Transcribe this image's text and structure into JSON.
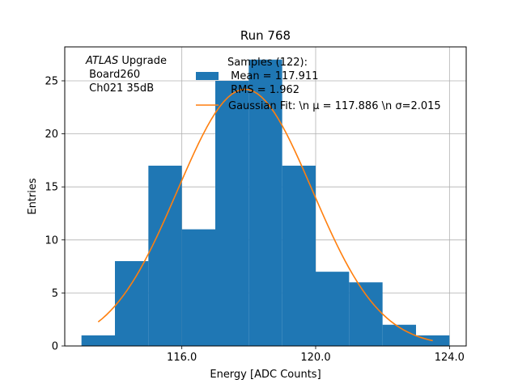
{
  "chart_data": {
    "type": "bar",
    "title": "Run 768",
    "xlabel": "Energy [ADC Counts]",
    "ylabel": "Entries",
    "xlim": [
      112.5,
      124.5
    ],
    "ylim": [
      0,
      28.2
    ],
    "grid": true,
    "x_ticks": [
      116.0,
      120.0,
      124.0
    ],
    "x_tick_labels": [
      "116.0",
      "120.0",
      "124.0"
    ],
    "y_ticks": [
      0,
      5,
      10,
      15,
      20,
      25
    ],
    "y_tick_labels": [
      "0",
      "5",
      "10",
      "15",
      "20",
      "25"
    ],
    "bin_edges": [
      113.0,
      114.0,
      115.0,
      116.0,
      117.0,
      118.0,
      119.0,
      120.0,
      121.0,
      122.0,
      123.0,
      124.0
    ],
    "values": [
      1,
      8,
      17,
      11,
      25,
      27,
      17,
      7,
      6,
      2,
      1
    ],
    "bar_color": "#1f77b4",
    "series": [
      {
        "name": "Gaussian Fit: \\n $\\mu$ = 117.886 \\n $\\sigma$=2.015",
        "type": "line",
        "color": "#ff7f0e",
        "mu": 117.886,
        "sigma": 2.015,
        "amplitude": 24.2,
        "x_range": [
          113.5,
          123.5
        ]
      }
    ],
    "annotation": {
      "lines": [
        {
          "italic": "ATLAS",
          "rest": " Upgrade"
        },
        {
          "italic": "",
          "rest": " Board260"
        },
        {
          "italic": "",
          "rest": " Ch021 35dB"
        }
      ]
    },
    "legend": {
      "position": "top-right",
      "entries": [
        {
          "kind": "patch",
          "color": "#1f77b4",
          "lines": [
            "Samples (122):",
            " Mean = 117.911",
            " RMS = 1.962"
          ]
        },
        {
          "kind": "line",
          "color": "#ff7f0e",
          "lines": [
            "Gaussian Fit: \\n μ = 117.886 \\n σ=2.015"
          ]
        }
      ]
    }
  }
}
